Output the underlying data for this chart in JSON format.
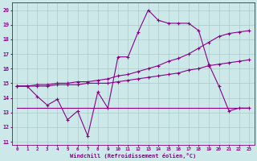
{
  "xlabel": "Windchill (Refroidissement éolien,°C)",
  "bg_color": "#cce8e8",
  "grid_color": "#aacccc",
  "line_color": "#880088",
  "xlim": [
    -0.5,
    23.5
  ],
  "ylim": [
    10.8,
    20.5
  ],
  "yticks": [
    11,
    12,
    13,
    14,
    15,
    16,
    17,
    18,
    19,
    20
  ],
  "xticks": [
    0,
    1,
    2,
    3,
    4,
    5,
    6,
    7,
    8,
    9,
    10,
    11,
    12,
    13,
    14,
    15,
    16,
    17,
    18,
    19,
    20,
    21,
    22,
    23
  ],
  "series1_x": [
    0,
    1,
    2,
    3,
    4,
    5,
    6,
    7,
    8,
    9,
    10,
    11,
    12,
    13,
    14,
    15,
    16,
    17,
    18,
    19,
    20,
    21,
    22,
    23
  ],
  "series1_y": [
    14.8,
    14.8,
    14.1,
    13.5,
    13.9,
    12.5,
    13.1,
    11.4,
    14.4,
    13.3,
    16.8,
    16.8,
    18.5,
    20.0,
    19.3,
    19.1,
    19.1,
    19.1,
    18.6,
    16.3,
    14.8,
    13.1,
    13.3,
    13.3
  ],
  "series2_x": [
    0,
    1,
    2,
    3,
    4,
    5,
    6,
    7,
    8,
    9,
    10,
    11,
    12,
    13,
    14,
    15,
    16,
    17,
    18,
    19,
    20,
    21,
    22,
    23
  ],
  "series2_y": [
    14.8,
    14.8,
    14.9,
    14.9,
    15.0,
    15.0,
    15.1,
    15.1,
    15.2,
    15.3,
    15.5,
    15.6,
    15.8,
    16.0,
    16.2,
    16.5,
    16.7,
    17.0,
    17.4,
    17.8,
    18.2,
    18.4,
    18.5,
    18.6
  ],
  "series3_x": [
    0,
    1,
    2,
    3,
    4,
    5,
    6,
    7,
    8,
    9,
    10,
    11,
    12,
    13,
    14,
    15,
    16,
    17,
    18,
    19,
    20,
    21,
    22,
    23
  ],
  "series3_y": [
    14.8,
    14.8,
    14.8,
    14.8,
    14.9,
    14.9,
    14.9,
    15.0,
    15.0,
    15.0,
    15.1,
    15.2,
    15.3,
    15.4,
    15.5,
    15.6,
    15.7,
    15.9,
    16.0,
    16.2,
    16.3,
    16.4,
    16.5,
    16.6
  ],
  "series4_x": [
    0,
    1,
    2,
    3,
    4,
    5,
    6,
    7,
    8,
    9,
    10,
    11,
    12,
    13,
    14,
    15,
    16,
    17,
    18,
    19,
    20,
    21,
    22,
    23
  ],
  "series4_y": [
    13.3,
    13.3,
    13.3,
    13.3,
    13.3,
    13.3,
    13.3,
    13.3,
    13.3,
    13.3,
    13.3,
    13.3,
    13.3,
    13.3,
    13.3,
    13.3,
    13.3,
    13.3,
    13.3,
    13.3,
    13.3,
    13.3,
    13.3,
    13.3
  ],
  "marker": "+"
}
